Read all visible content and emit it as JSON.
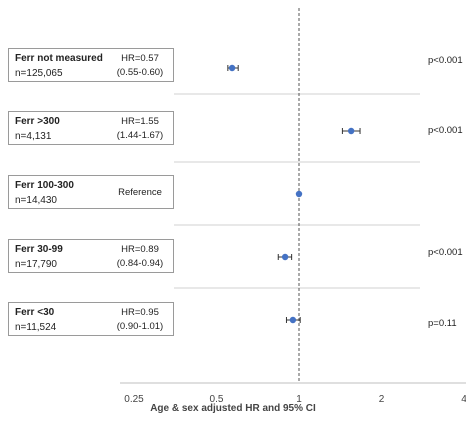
{
  "chart_data": {
    "type": "forest",
    "xlabel": "Age & sex adjusted HR and 95% CI",
    "x_scale": "log",
    "xlim": [
      0.25,
      4
    ],
    "x_ticks": [
      "0.25",
      "0.5",
      "1",
      "2",
      "4"
    ],
    "reference_line": 1,
    "rows": [
      {
        "name": "Ferr not measured",
        "n": "n=125,065",
        "hr_text": "HR=0.57",
        "ci_text": "(0.55-0.60)",
        "hr": 0.57,
        "lo": 0.55,
        "hi": 0.6,
        "p": "p<0.001"
      },
      {
        "name": "Ferr >300",
        "n": "n=4,131",
        "hr_text": "HR=1.55",
        "ci_text": "(1.44-1.67)",
        "hr": 1.55,
        "lo": 1.44,
        "hi": 1.67,
        "p": "p<0.001"
      },
      {
        "name": "Ferr 100-300",
        "n": "n=14,430",
        "hr_text": "Reference",
        "ci_text": "",
        "hr": 1.0,
        "lo": 1.0,
        "hi": 1.0,
        "p": ""
      },
      {
        "name": "Ferr 30-99",
        "n": "n=17,790",
        "hr_text": "HR=0.89",
        "ci_text": "(0.84-0.94)",
        "hr": 0.89,
        "lo": 0.84,
        "hi": 0.94,
        "p": "p<0.001"
      },
      {
        "name": "Ferr <30",
        "n": "n=11,524",
        "hr_text": "HR=0.95",
        "ci_text": "(0.90-1.01)",
        "hr": 0.95,
        "lo": 0.9,
        "hi": 1.01,
        "p": "p=0.11"
      }
    ],
    "point_color": "#4472c4"
  }
}
